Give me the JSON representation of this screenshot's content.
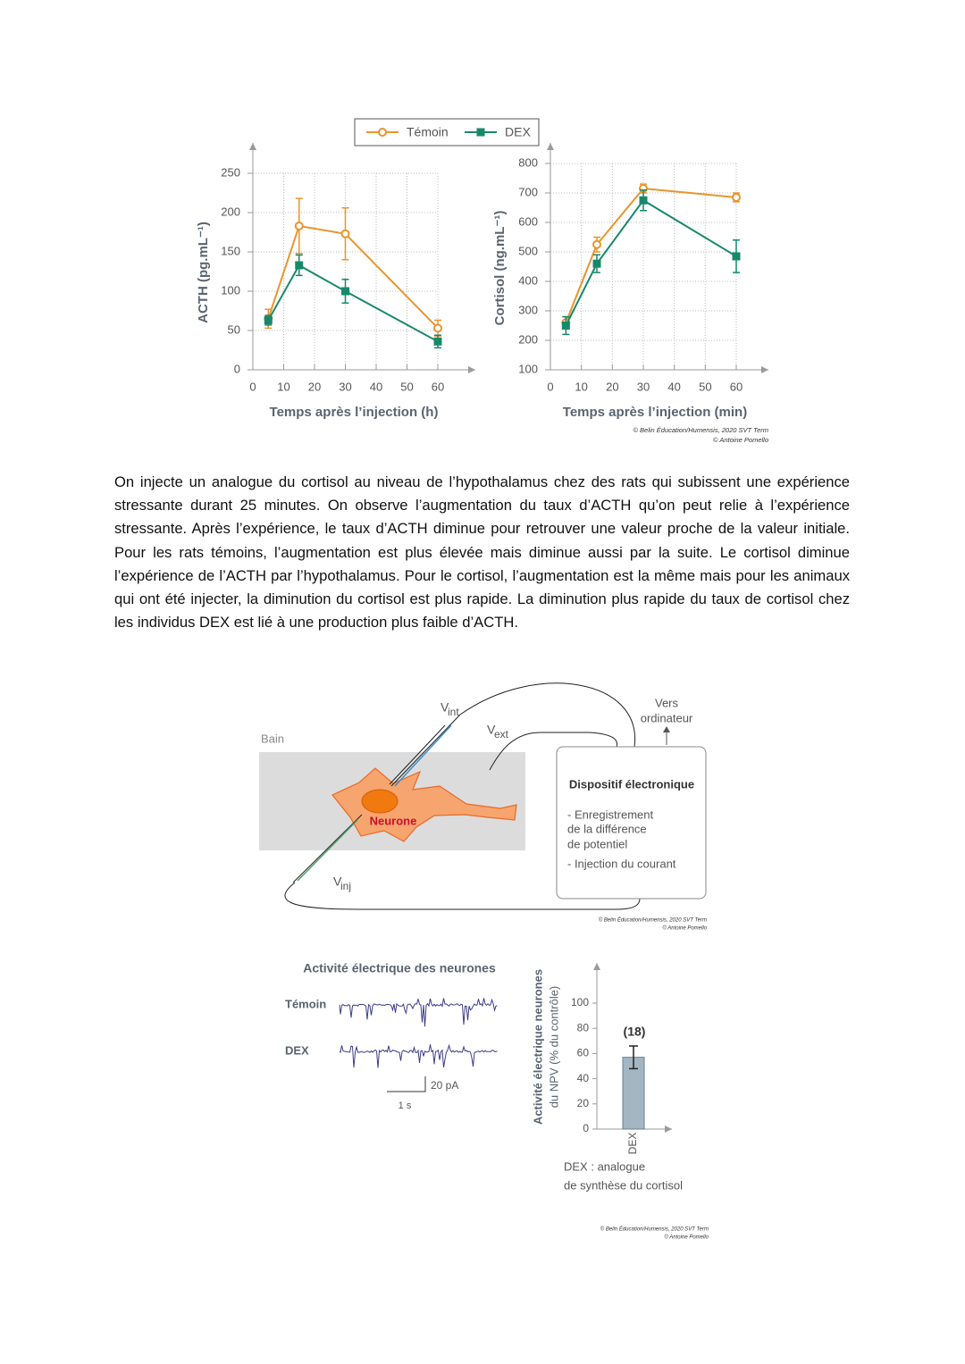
{
  "chart_data": [
    {
      "type": "line",
      "ylabel": "ACTH (pg.mL⁻¹)",
      "xlabel": "Temps après l’injection (h)",
      "x": [
        5,
        15,
        30,
        60
      ],
      "xlim": [
        0,
        60
      ],
      "xticks": [
        0,
        10,
        20,
        30,
        40,
        50,
        60
      ],
      "ylim": [
        0,
        250
      ],
      "yticks": [
        0,
        50,
        100,
        150,
        200,
        250
      ],
      "grid": true,
      "legend": "top",
      "series": [
        {
          "name": "Témoin",
          "color": "#e8952e",
          "marker": "circle",
          "values": [
            65,
            183,
            173,
            53
          ],
          "errors": [
            12,
            35,
            33,
            10
          ]
        },
        {
          "name": "DEX",
          "color": "#17896b",
          "marker": "square",
          "values": [
            63,
            133,
            100,
            36
          ],
          "errors": [
            6,
            13,
            15,
            8
          ]
        }
      ]
    },
    {
      "type": "line",
      "ylabel": "Cortisol (ng.mL⁻¹)",
      "xlabel": "Temps après l’injection (min)",
      "x": [
        5,
        15,
        30,
        60
      ],
      "xlim": [
        0,
        60
      ],
      "xticks": [
        0,
        10,
        20,
        30,
        40,
        50,
        60
      ],
      "ylim": [
        100,
        800
      ],
      "yticks": [
        100,
        200,
        300,
        400,
        500,
        600,
        700,
        800
      ],
      "grid": true,
      "series": [
        {
          "name": "Témoin",
          "color": "#e8952e",
          "marker": "circle",
          "values": [
            260,
            525,
            715,
            685
          ],
          "errors": [
            20,
            25,
            15,
            15
          ]
        },
        {
          "name": "DEX",
          "color": "#17896b",
          "marker": "square",
          "values": [
            250,
            460,
            675,
            485
          ],
          "errors": [
            30,
            30,
            35,
            55
          ]
        }
      ],
      "credit": [
        "© Belin Éducation/Humensis, 2020 SVT Term",
        "© Antoine Pomello"
      ]
    },
    {
      "type": "bar",
      "ylabel": "Activité électrique neurones",
      "ylabel_sub": "du NPV (% du contrôle)",
      "categories": [
        "DEX"
      ],
      "values": [
        57
      ],
      "errors": [
        9
      ],
      "color": "#a4b6c2",
      "ylim": [
        0,
        100
      ],
      "yticks": [
        0,
        20,
        40,
        60,
        80,
        100
      ],
      "annotation": "(18)",
      "notes": [
        "DEX : analogue",
        "de synthèse du cortisol"
      ],
      "credit": [
        "© Belin Éducation/Humensis, 2020 SVT Term",
        "© Antoine Pomello"
      ]
    }
  ],
  "paragraph": "On injecte un analogue du cortisol au niveau de l’hypothalamus chez des rats qui subissent une expérience stressante durant 25 minutes. On observe l’augmentation du taux d’ACTH qu’on peut relie à l’expérience stressante. Après l’expérience, le taux d’ACTH diminue pour retrouver une valeur proche de la valeur initiale. Pour les rats témoins, l’augmentation est plus élevée mais diminue aussi par la suite. Le cortisol diminue l’expérience de l’ACTH par l’hypothalamus. Pour le cortisol, l’augmentation est la même mais pour les animaux qui ont été injecter, la diminution du cortisol est plus rapide. La diminution plus rapide du taux de cortisol chez les individus DEX est lié à une production plus faible d’ACTH.",
  "diagram": {
    "bath": "Bain",
    "v_int": {
      "main": "V",
      "sub": "int"
    },
    "v_ext": {
      "main": "V",
      "sub": "ext"
    },
    "v_inj": {
      "main": "V",
      "sub": "inj"
    },
    "neuron": "Neurone",
    "computer": [
      "Vers",
      "ordinateur"
    ],
    "device": {
      "title": "Dispositif électronique",
      "lines": [
        "- Enregistrement",
        "de la différence",
        "de potentiel",
        "- Injection du courant"
      ]
    },
    "credit": [
      "© Belin Éducation/Humensis, 2020 SVT Term",
      "© Antoine Pomello"
    ]
  },
  "traces": {
    "title": "Activité électrique des neurones",
    "rows": [
      "Témoin",
      "DEX"
    ],
    "scale_y": "20 pA",
    "scale_x": "1 s"
  }
}
